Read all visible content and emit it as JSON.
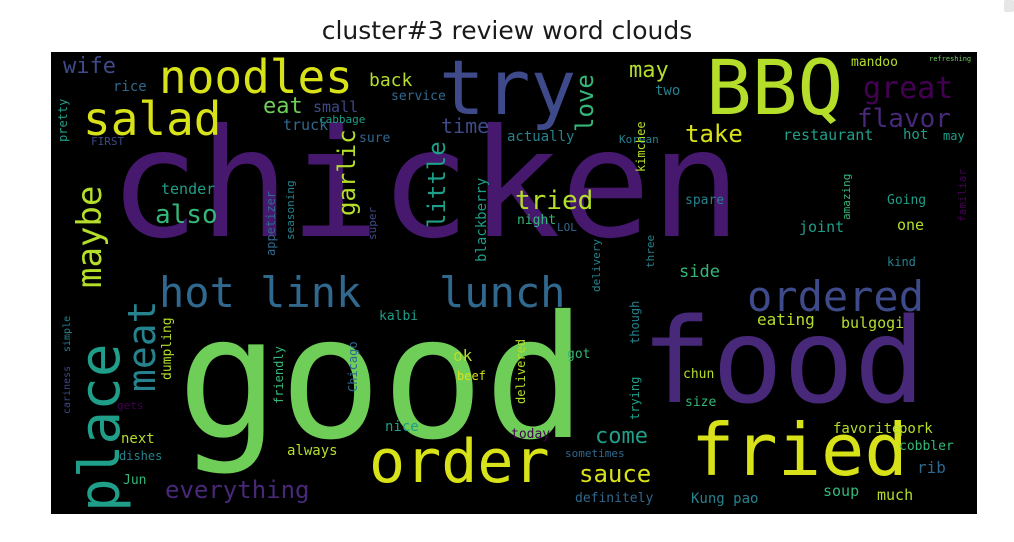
{
  "title": "cluster#3 review word clouds",
  "words": {
    "chicken": "chicken",
    "good": "good",
    "food": "food",
    "bbq": "BBQ",
    "try": "try",
    "noodles": "noodles",
    "salad": "salad",
    "order": "order",
    "fried": "fried",
    "place": "place",
    "maybe": "maybe",
    "hot_link": "hot link",
    "lunch": "lunch",
    "ordered": "ordered",
    "meat": "meat",
    "wife": "wife",
    "rice": "rice",
    "pretty": "pretty",
    "first": "FIRST",
    "back": "back",
    "service": "service",
    "eat": "eat",
    "small": "small",
    "cabbage": "cabbage",
    "truck": "truck",
    "sure": "sure",
    "love": "love",
    "time": "time",
    "may": "may",
    "two": "two",
    "mandoo": "mandoo",
    "refreshing": "refreshing",
    "great": "great",
    "flavor": "flavor",
    "take": "take",
    "actually": "actually",
    "restaurant": "restaurant",
    "hot": "hot",
    "may2": "may",
    "korean": "Korean",
    "kimchee": "kimchee",
    "tender": "tender",
    "also": "also",
    "garlic": "garlic",
    "seasoning": "seasoning",
    "appetizer": "appetizer",
    "super": "super",
    "little": "little",
    "blackberry": "blackberry",
    "tried": "tried",
    "night": "night",
    "lol": "LOL",
    "amazing": "amazing",
    "spare": "spare",
    "going": "Going",
    "one": "one",
    "joint": "joint",
    "familiar": "familiar",
    "kind": "kind",
    "side": "side",
    "three": "three",
    "delivery": "delivery",
    "eating": "eating",
    "bulgogi": "bulgogi",
    "kalbi": "kalbi",
    "dumpling": "dumpling",
    "friendly": "friendly",
    "chicago": "Chicago",
    "ok": "ok",
    "beef": "beef",
    "delivered": "delivered",
    "got": "got",
    "though": "though",
    "trying": "trying",
    "chun": "chun",
    "size": "size",
    "favorite": "favorite",
    "pork": "pork",
    "cobbler": "cobbler",
    "rib": "rib",
    "next": "next",
    "dishes": "dishes",
    "always": "always",
    "nice": "nice",
    "today": "today",
    "sometimes": "sometimes",
    "come": "come",
    "sauce": "sauce",
    "everything": "everything",
    "jun": "Jun",
    "definitely": "definitely",
    "kung_pao": "Kung pao",
    "soup": "soup",
    "much": "much",
    "gets": "gets",
    "simple": "simple",
    "cariness": "cariness"
  },
  "colors": {
    "background": "#000000",
    "purple": "#46186e",
    "violet": "#482878",
    "indigo": "#3e4a89",
    "blue": "#31688e",
    "teal": "#26828e",
    "sea": "#1f9e89",
    "green": "#35b779",
    "lime": "#6ece58",
    "chartreuse": "#b5de2b",
    "yellow": "#d8e219",
    "darkpurple": "#440154"
  }
}
